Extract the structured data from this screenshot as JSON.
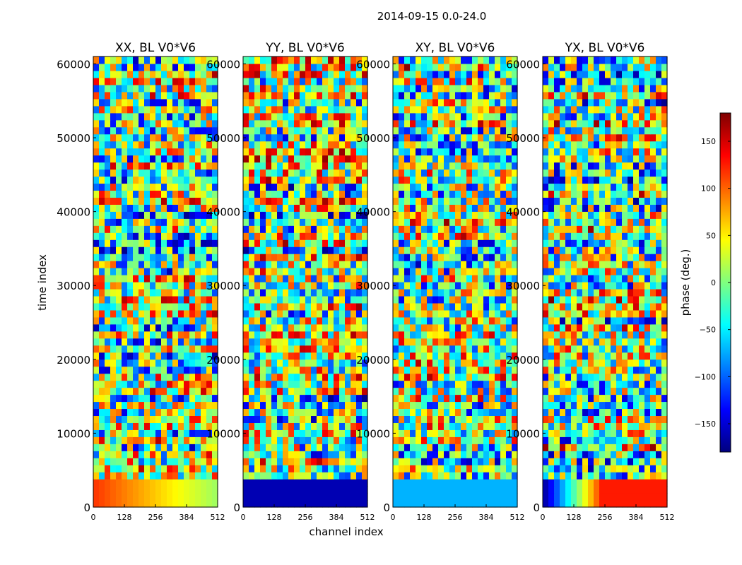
{
  "figure_title": "2014-09-15 0.0-24.0",
  "chart_data": {
    "type": "heatmap",
    "suptitle": "2014-09-15 0.0-24.0",
    "xlabel": "channel index",
    "ylabel": "time index",
    "xlim": [
      0,
      512
    ],
    "ylim": [
      0,
      61000
    ],
    "x_ticks": [
      0,
      128,
      256,
      384,
      512
    ],
    "y_ticks": [
      0,
      10000,
      20000,
      30000,
      40000,
      50000,
      60000
    ],
    "colormap": "jet",
    "panels": [
      {
        "title": "XX, BL V0*V6"
      },
      {
        "title": "YY, BL V0*V6"
      },
      {
        "title": "XY, BL V0*V6"
      },
      {
        "title": "YX, BL V0*V6"
      }
    ],
    "colorbar": {
      "label": "phase (deg.)",
      "range": [
        -180,
        180
      ],
      "ticks": [
        -150,
        -100,
        -50,
        0,
        50,
        100,
        150
      ],
      "tick_labels": [
        "−150",
        "−100",
        "−50",
        "0",
        "50",
        "100",
        "150"
      ],
      "colors": [
        "#00007f",
        "#0000ff",
        "#007fff",
        "#00ffff",
        "#7fff7f",
        "#ffff00",
        "#ff7f00",
        "#ff0000",
        "#7f0000"
      ]
    }
  }
}
